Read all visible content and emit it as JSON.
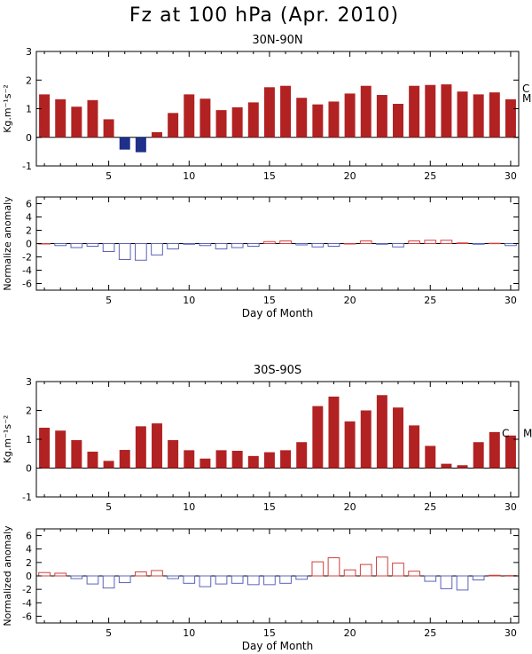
{
  "title": "Fz at 100 hPa (Apr. 2010)",
  "colors": {
    "positive_bar": "#b22222",
    "negative_bar": "#1f2f8a",
    "anomaly_pos": "#d04040",
    "anomaly_neg": "#5a64b8"
  },
  "chart_data": [
    {
      "type": "bar",
      "title": "30N-90N",
      "ylabel": "Kg.m⁻¹s⁻²",
      "ylim": [
        -1,
        3
      ],
      "yticks": [
        -1,
        0,
        1,
        2,
        3
      ],
      "xlim": [
        0.5,
        30.5
      ],
      "xticks": [
        5,
        10,
        15,
        20,
        25,
        30
      ],
      "x": [
        1,
        2,
        3,
        4,
        5,
        6,
        7,
        8,
        9,
        10,
        11,
        12,
        13,
        14,
        15,
        16,
        17,
        18,
        19,
        20,
        21,
        22,
        23,
        24,
        25,
        26,
        27,
        28,
        29,
        30
      ],
      "values": [
        1.5,
        1.33,
        1.07,
        1.3,
        0.63,
        -0.43,
        -0.52,
        0.18,
        0.85,
        1.5,
        1.35,
        0.95,
        1.05,
        1.22,
        1.75,
        1.8,
        1.38,
        1.15,
        1.25,
        1.53,
        1.8,
        1.48,
        1.17,
        1.8,
        1.83,
        1.85,
        1.6,
        1.5,
        1.57,
        1.33
      ],
      "markers": [
        {
          "label": "C",
          "y": 1.7
        },
        {
          "label": "M",
          "y": 1.35
        }
      ]
    },
    {
      "type": "bar",
      "title": "",
      "ylabel": "Normalize anomaly",
      "ylim": [
        -7,
        7
      ],
      "yticks": [
        -6,
        -4,
        -2,
        0,
        2,
        4,
        6
      ],
      "xlim": [
        0.5,
        30.5
      ],
      "xticks": [
        5,
        10,
        15,
        20,
        25,
        30
      ],
      "xlabel": "Day of Month",
      "x": [
        1,
        2,
        3,
        4,
        5,
        6,
        7,
        8,
        9,
        10,
        11,
        12,
        13,
        14,
        15,
        16,
        17,
        18,
        19,
        20,
        21,
        22,
        23,
        24,
        25,
        26,
        27,
        28,
        29,
        30
      ],
      "values": [
        0,
        -0.3,
        -0.6,
        -0.4,
        -1.2,
        -2.4,
        -2.5,
        -1.7,
        -0.8,
        -0.1,
        -0.3,
        -0.8,
        -0.6,
        -0.4,
        0.3,
        0.4,
        -0.2,
        -0.5,
        -0.4,
        0.0,
        0.4,
        -0.1,
        -0.5,
        0.4,
        0.5,
        0.5,
        0.1,
        -0.1,
        0.05,
        -0.3
      ]
    },
    {
      "type": "bar",
      "title": "30S-90S",
      "ylabel": "Kg.m⁻¹s⁻²",
      "ylim": [
        -1,
        3
      ],
      "yticks": [
        -1,
        0,
        1,
        2,
        3
      ],
      "xlim": [
        0.5,
        30.5
      ],
      "xticks": [
        5,
        10,
        15,
        20,
        25,
        30
      ],
      "x": [
        1,
        2,
        3,
        4,
        5,
        6,
        7,
        8,
        9,
        10,
        11,
        12,
        13,
        14,
        15,
        16,
        17,
        18,
        19,
        20,
        21,
        22,
        23,
        24,
        25,
        26,
        27,
        28,
        29,
        30
      ],
      "values": [
        1.4,
        1.3,
        0.97,
        0.57,
        0.25,
        0.63,
        1.45,
        1.55,
        0.97,
        0.62,
        0.33,
        0.62,
        0.6,
        0.42,
        0.55,
        0.62,
        0.9,
        2.15,
        2.48,
        1.62,
        2.0,
        2.53,
        2.1,
        1.48,
        0.77,
        0.15,
        0.1,
        0.9,
        1.25,
        1.13
      ],
      "markers": [
        {
          "label": "C",
          "y": 1.2
        },
        {
          "label": "M",
          "y": 1.2
        }
      ]
    },
    {
      "type": "bar",
      "title": "",
      "ylabel": "Normalized anomaly",
      "ylim": [
        -7,
        7
      ],
      "yticks": [
        -6,
        -4,
        -2,
        0,
        2,
        4,
        6
      ],
      "xlim": [
        0.5,
        30.5
      ],
      "xticks": [
        5,
        10,
        15,
        20,
        25,
        30
      ],
      "xlabel": "Day of Month",
      "x": [
        1,
        2,
        3,
        4,
        5,
        6,
        7,
        8,
        9,
        10,
        11,
        12,
        13,
        14,
        15,
        16,
        17,
        18,
        19,
        20,
        21,
        22,
        23,
        24,
        25,
        26,
        27,
        28,
        29,
        30
      ],
      "values": [
        0.5,
        0.4,
        -0.4,
        -1.2,
        -1.8,
        -1.0,
        0.6,
        0.8,
        -0.4,
        -1.1,
        -1.6,
        -1.2,
        -1.1,
        -1.3,
        -1.3,
        -1.1,
        -0.5,
        2.1,
        2.7,
        0.9,
        1.7,
        2.8,
        1.9,
        0.7,
        -0.8,
        -1.9,
        -2.1,
        -0.6,
        0.1,
        0.05
      ]
    }
  ]
}
